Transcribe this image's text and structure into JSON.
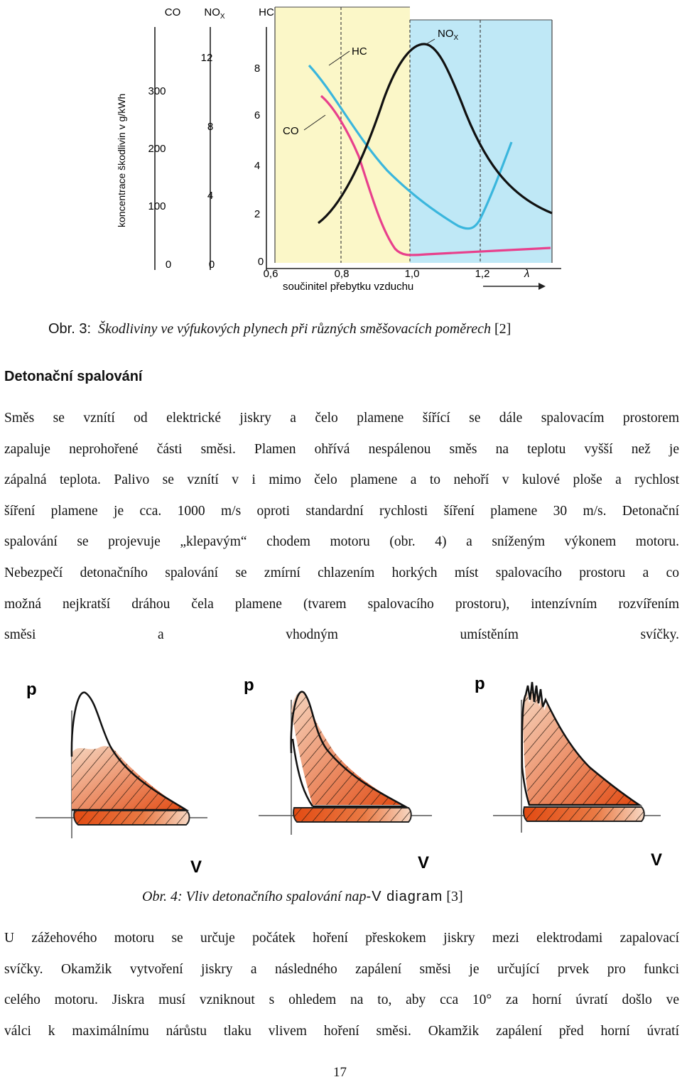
{
  "figure3": {
    "col_headers": [
      "CO",
      "NOX",
      "HC"
    ],
    "co_ticks": [
      "300",
      "200",
      "100",
      "0"
    ],
    "nox_ticks": [
      "12",
      "8",
      "4",
      "0"
    ],
    "hc_ticks": [
      "8",
      "6",
      "4",
      "2",
      "0"
    ],
    "y_axis_title": "koncentrace škodlivin v g/kWh",
    "x_ticks": [
      "0,6",
      "0,8",
      "1,0",
      "1,2"
    ],
    "lambda_symbol": "λ",
    "x_axis_title": "součinitel přebytku vzduchu",
    "curve_labels": {
      "nox": "NOX",
      "hc": "HC",
      "co": "CO"
    },
    "colors": {
      "nox": "#111111",
      "hc": "#3ab6dd",
      "co": "#e8408c",
      "rich_zone": "#fbf7c8",
      "lean_zone": "#bfe8f6"
    }
  },
  "caption3": {
    "prefix": "Obr. 3:",
    "text": "Škodliviny ve výfukových plynech při různých směšovacích poměrech",
    "ref": "[2]"
  },
  "section": {
    "heading": "Detonační spalování",
    "lines": [
      "Směs se vznítí od elektrické jiskry a čelo plamene šířící se dále spalovacím prostorem",
      "zapaluje neprohořené části směsi. Plamen ohřívá nespálenou směs na teplotu vyšší než je",
      "zápalná teplota. Palivo se vznítí v i mimo čelo plamene a to nehoří v kulové ploše a rychlost",
      "šíření plamene je cca. 1000 m/s oproti standardní rychlosti šíření plamene 30 m/s. Detonační",
      "spalování se projevuje „klepavým“ chodem motoru (obr. 4) a sníženým výkonem motoru.",
      "Nebezpečí detonačního spalování se zmírní chlazením horkých míst spalovacího prostoru a co",
      "možná nejkratší dráhou čela plamene (tvarem spalovacího prostoru), intenzívním rozvířením",
      "směsi a vhodným umístěním svíčky."
    ]
  },
  "figure4": {
    "p_label": "p",
    "v_label": "V",
    "colors": {
      "dark_fill": "#e24a12",
      "light_fill": "#f3c2a4"
    }
  },
  "caption4": {
    "prefix": "Obr. 4:",
    "text_a": "Vliv detonačního spalování na",
    "text_b": "p",
    "text_c": "-V diagram",
    "ref": "[3]"
  },
  "paragraph2": {
    "lines": [
      "U zážehového motoru se určuje počátek hoření přeskokem jiskry mezi elektrodami zapalovací",
      "svíčky. Okamžik vytvoření jiskry a následného zapálení směsi je určující prvek pro funkci",
      "celého motoru. Jiskra musí vzniknout s ohledem na to, aby cca 10° za horní úvratí došlo ve",
      "válci k maximálnímu nárůstu tlaku vlivem hoření směsi. Okamžik zapálení před horní úvratí"
    ]
  },
  "page_number": "17"
}
